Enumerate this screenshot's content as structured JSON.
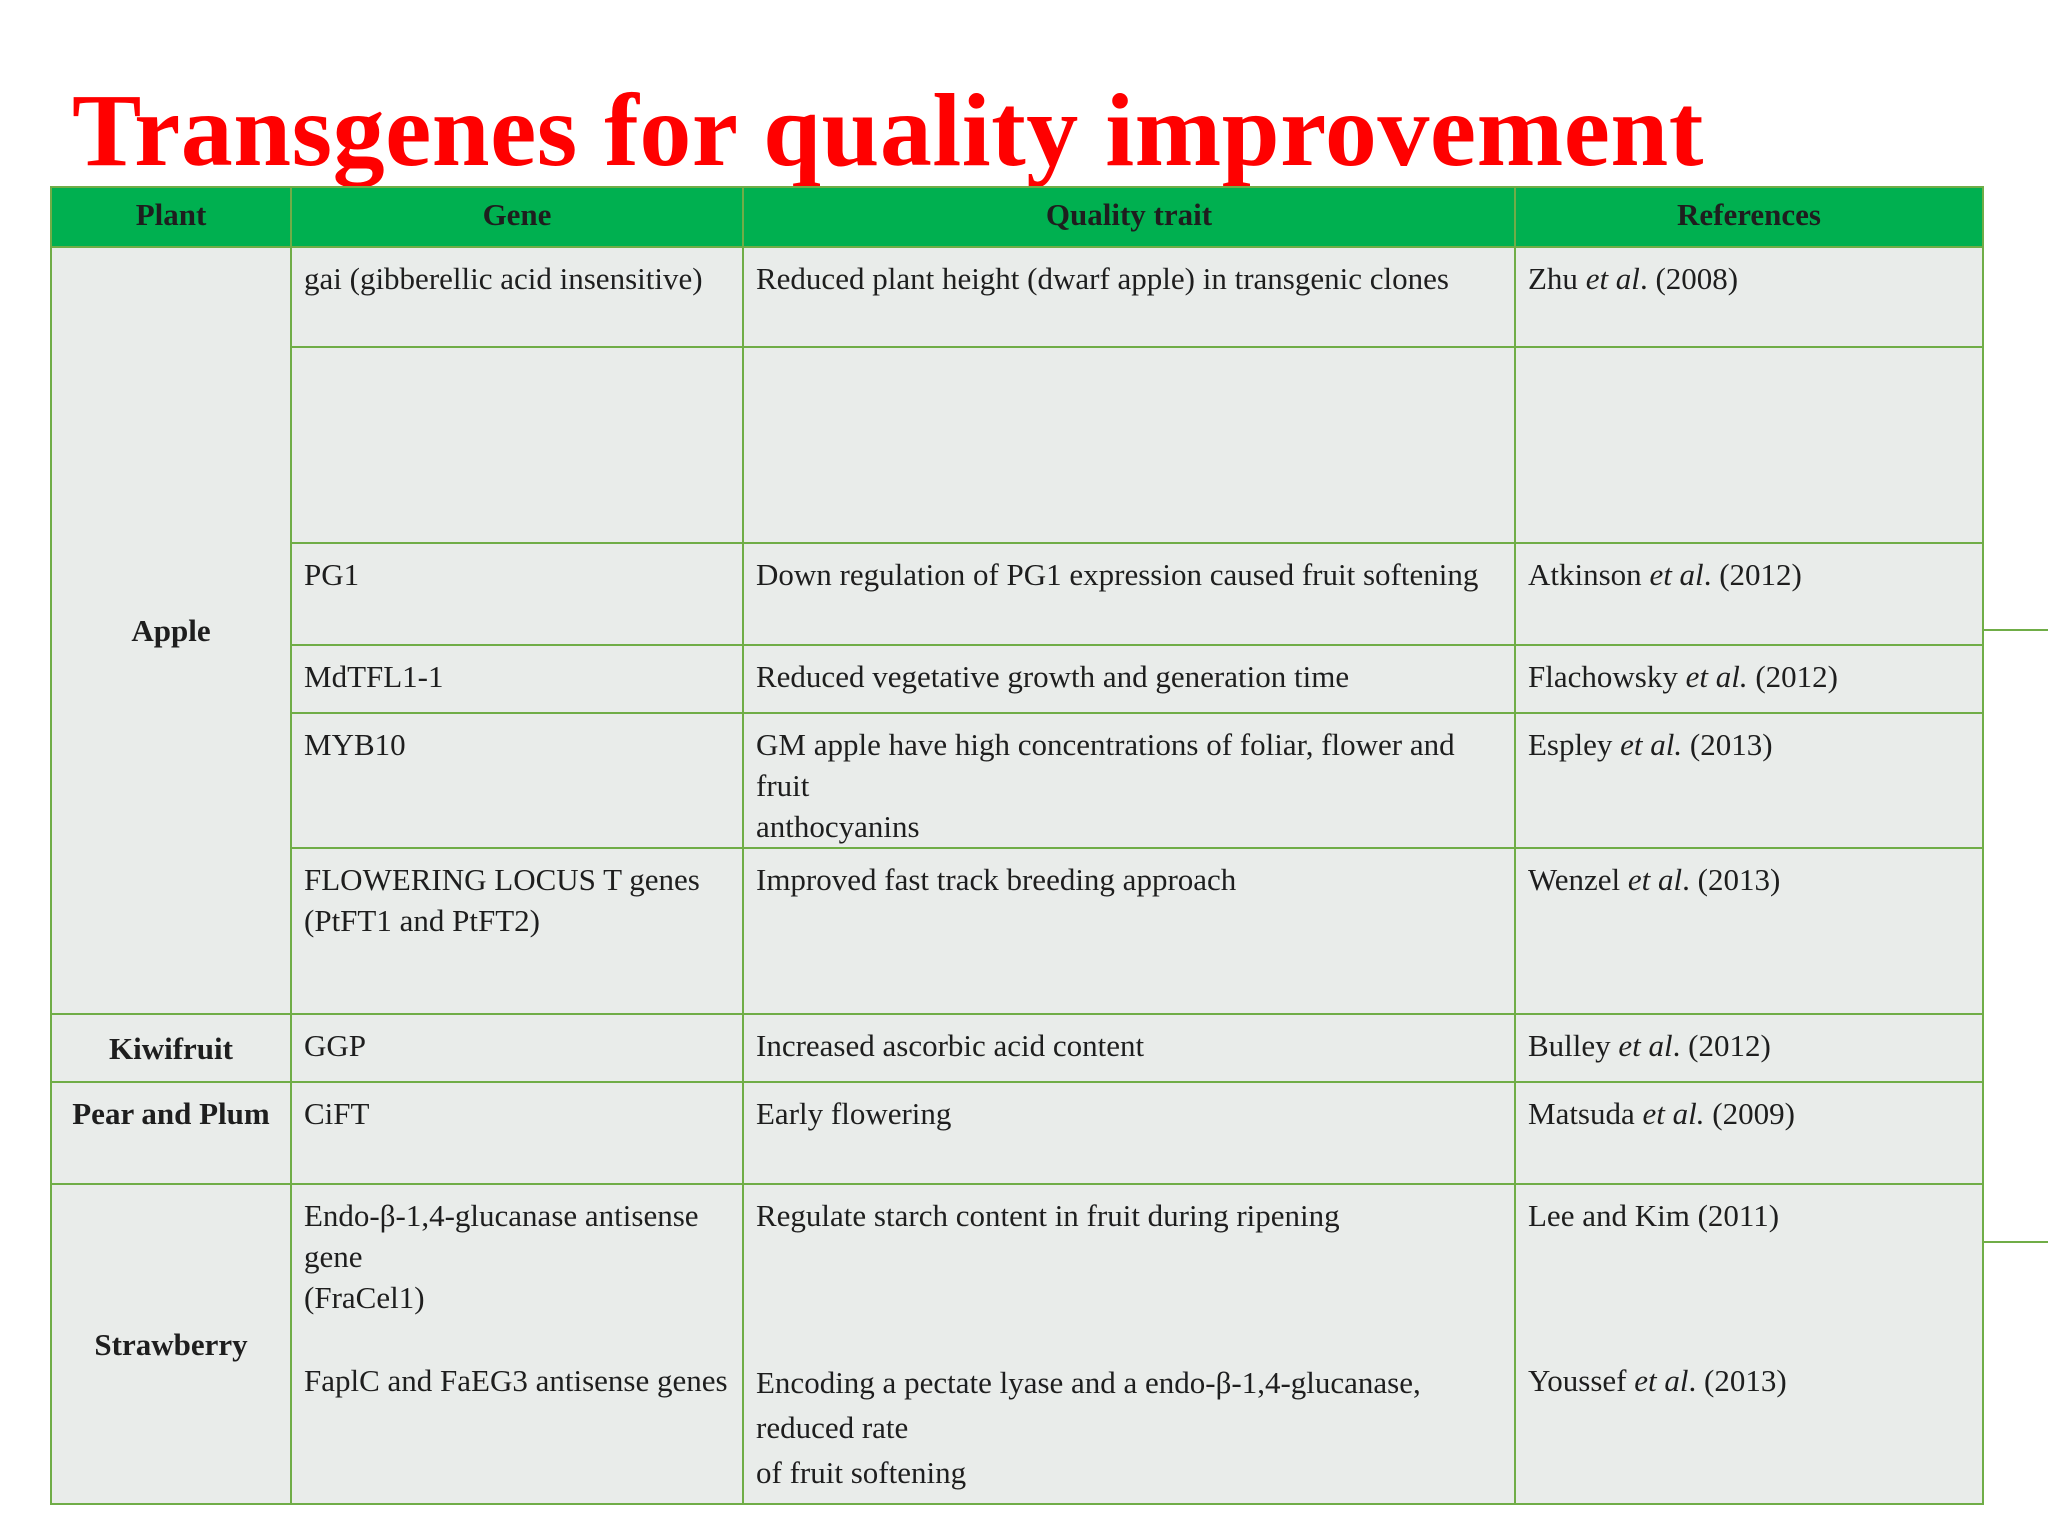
{
  "title": "Transgenes for quality improvement",
  "colors": {
    "title": "#ff0000",
    "header_fill": "#00b050",
    "border": "#70ad47",
    "cell_fill": "#e9ecea"
  },
  "table": {
    "headers": [
      "Plant",
      "Gene",
      "Quality trait",
      "References"
    ],
    "plants": {
      "apple": "Apple",
      "kiwifruit": "Kiwifruit",
      "pear_plum": "Pear and Plum",
      "strawberry": "Strawberry"
    },
    "rows": [
      {
        "gene": "gai (gibberellic acid insensitive)",
        "trait": "Reduced plant height (dwarf apple) in transgenic clones",
        "ref_author": "Zhu ",
        "ref_etal": "et al",
        "ref_year": ". (2008)"
      },
      {
        "gene": "",
        "trait": "",
        "ref_author": "",
        "ref_etal": "",
        "ref_year": ""
      },
      {
        "gene": "PG1",
        "trait": "Down regulation of PG1 expression caused fruit softening",
        "ref_author": "Atkinson ",
        "ref_etal": "et al",
        "ref_year": ". (2012)"
      },
      {
        "gene": "MdTFL1-1",
        "trait": "Reduced vegetative growth and generation time",
        "ref_author": "Flachowsky ",
        "ref_etal": "et al.",
        "ref_year": " (2012)"
      },
      {
        "gene": "MYB10",
        "trait": "GM apple have high concentrations of foliar, flower and fruit\nanthocyanins",
        "ref_author": "Espley ",
        "ref_etal": "et al.",
        "ref_year": " (2013)"
      },
      {
        "gene": "FLOWERING LOCUS T genes (PtFT1 and PtFT2)",
        "trait": "Improved fast track breeding approach",
        "ref_author": "Wenzel ",
        "ref_etal": "et al",
        "ref_year": ". (2013)"
      },
      {
        "gene": "GGP",
        "trait": "Increased ascorbic acid content",
        "ref_author": "Bulley ",
        "ref_etal": "et al",
        "ref_year": ". (2012)"
      },
      {
        "gene": "CiFT",
        "trait": "Early flowering",
        "ref_author": "Matsuda ",
        "ref_etal": "et al.",
        "ref_year": " (2009)"
      },
      {
        "gene": "Endo-β-1,4-glucanase antisense gene\n(FraCel1)",
        "trait": "Regulate starch content in fruit during ripening",
        "ref_author": "Lee and Kim (2011)",
        "ref_etal": "",
        "ref_year": "",
        "gene_2": "FaplC and FaEG3 antisense genes",
        "trait_2": "Encoding a pectate lyase and a endo-β-1,4-glucanase, reduced rate\nof fruit softening",
        "ref_author_2": "Youssef ",
        "ref_etal_2": "et al",
        "ref_year_2": ". (2013)"
      }
    ]
  }
}
